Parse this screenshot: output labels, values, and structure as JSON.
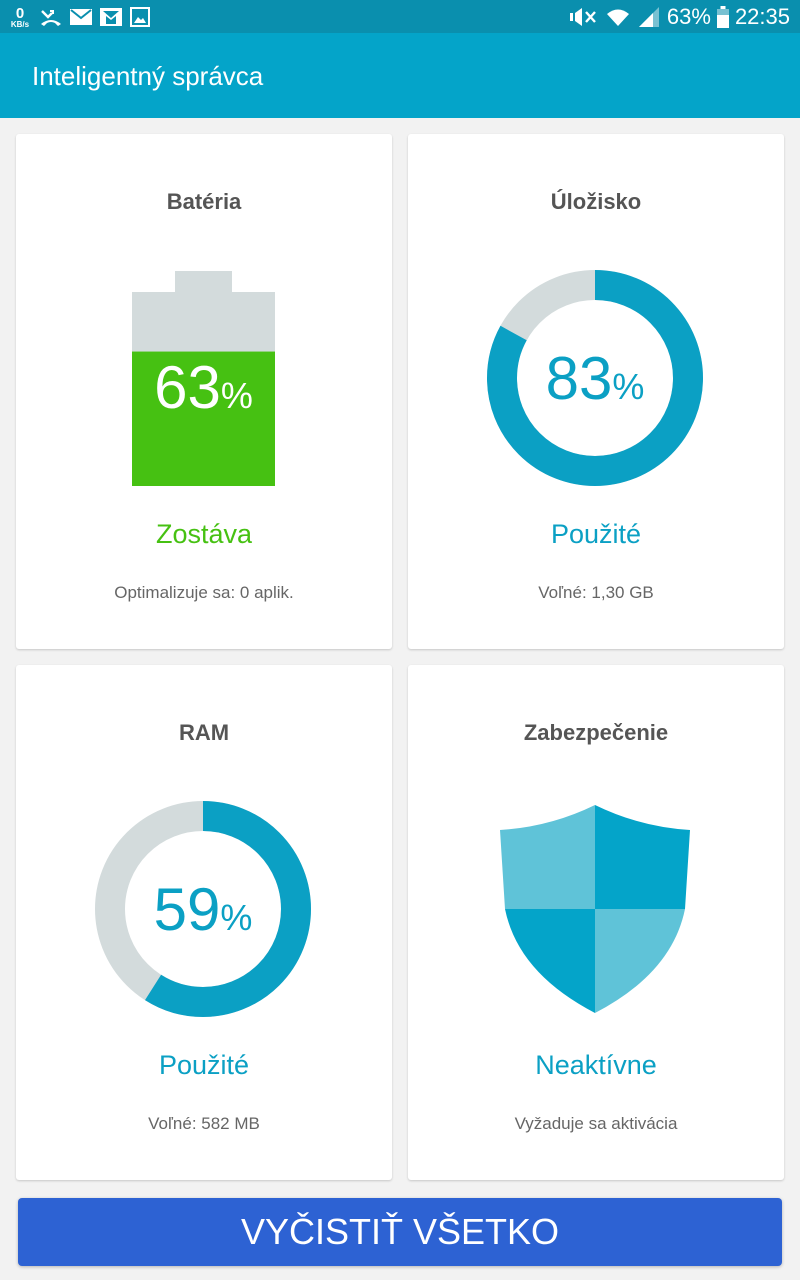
{
  "status_bar": {
    "speed_value": "0",
    "speed_unit": "KB/s",
    "battery_percent": "63%",
    "time": "22:35",
    "left_icons": [
      "missed-call-icon",
      "email-icon",
      "gmail-icon",
      "image-icon"
    ],
    "right_icons": [
      "mute-icon",
      "wifi-icon",
      "signal-icon",
      "battery-icon"
    ]
  },
  "app_bar": {
    "title": "Inteligentný správca"
  },
  "cards": {
    "battery": {
      "title": "Batéria",
      "value": "63",
      "unit": "%",
      "level": 0.63,
      "status": "Zostáva",
      "sub": "Optimalizuje sa: 0 aplik."
    },
    "storage": {
      "title": "Úložisko",
      "value": "83",
      "unit": "%",
      "used_fraction": 0.83,
      "status": "Použité",
      "sub": "Voľné: 1,30 GB"
    },
    "ram": {
      "title": "RAM",
      "value": "59",
      "unit": "%",
      "used_fraction": 0.59,
      "status": "Použité",
      "sub": "Voľné: 582 MB"
    },
    "security": {
      "title": "Zabezpečenie",
      "status": "Neaktívne",
      "sub": "Vyžaduje sa aktivácia",
      "icon": "shield-icon"
    }
  },
  "actions": {
    "clean_all_label": "VYČISTIŤ VŠETKO"
  },
  "colors": {
    "status_bar": "#0a8fae",
    "app_bar": "#04a4c9",
    "accent_teal": "#0ba0c4",
    "battery_green": "#46c112",
    "track_grey": "#d3dbdc",
    "button_blue": "#2d62d3"
  }
}
